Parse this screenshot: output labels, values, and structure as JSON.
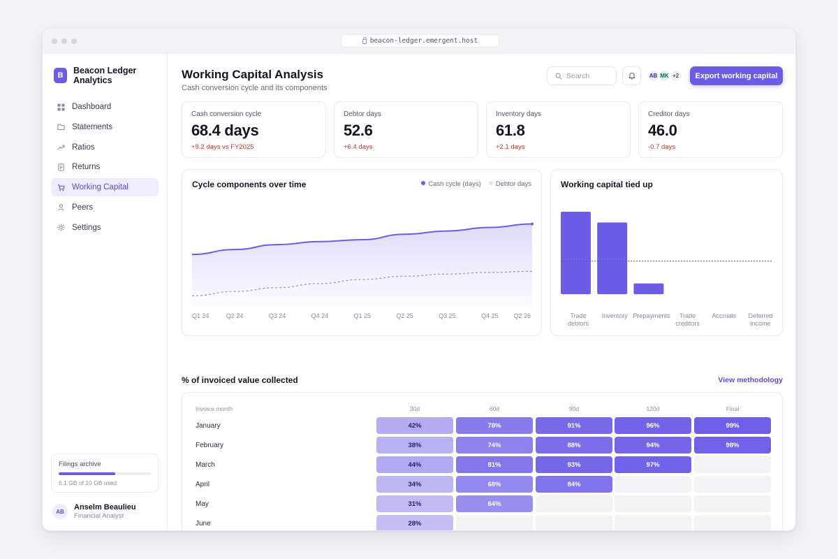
{
  "browser": {
    "url": "beacon-ledger.emergent.host"
  },
  "brand": {
    "logo_letter": "B",
    "name": "Beacon Ledger Analytics"
  },
  "sidebar": {
    "items": [
      {
        "label": "Dashboard",
        "icon": "dashboard-icon"
      },
      {
        "label": "Statements",
        "icon": "folder-icon"
      },
      {
        "label": "Ratios",
        "icon": "trend-icon"
      },
      {
        "label": "Returns",
        "icon": "document-icon"
      },
      {
        "label": "Working Capital",
        "icon": "cart-icon",
        "active": true
      },
      {
        "label": "Peers",
        "icon": "user-icon"
      },
      {
        "label": "Settings",
        "icon": "gear-icon"
      }
    ],
    "storage": {
      "title": "Filings archive",
      "used_text": "6.1 GB of 10 GB used",
      "used_fraction": 0.61
    },
    "user": {
      "initials": "AB",
      "name": "Anselm Beaulieu",
      "role": "Financial Analyst"
    }
  },
  "header": {
    "title": "Working Capital Analysis",
    "subtitle": "Cash conversion cycle and its components",
    "search_placeholder": "Search",
    "avatars": [
      "AB",
      "MK",
      "+2"
    ],
    "export_label": "Export working capital"
  },
  "kpis": [
    {
      "label": "Cash conversion cycle",
      "value": "68.4 days",
      "delta": "+9.2 days vs FY2025",
      "delta_color": "#c0392b"
    },
    {
      "label": "Debtor days",
      "value": "52.6",
      "delta": "+6.4 days",
      "delta_color": "#c0392b"
    },
    {
      "label": "Inventory days",
      "value": "61.8",
      "delta": "+2.1 days",
      "delta_color": "#c0392b"
    },
    {
      "label": "Creditor days",
      "value": "46.0",
      "delta": "-0.7 days",
      "delta_color": "#c0392b"
    }
  ],
  "chart_data": [
    {
      "type": "area",
      "title": "Cycle components over time",
      "categories": [
        "Q1 24",
        "Q2 24",
        "Q3 24",
        "Q4 24",
        "Q1 25",
        "Q2 25",
        "Q3 25",
        "Q4 25",
        "Q2 26"
      ],
      "series": [
        {
          "name": "Cash cycle (days)",
          "color": "#6c5ce7",
          "values": [
            59.2,
            61.0,
            62.8,
            63.9,
            64.6,
            66.6,
            67.8,
            69.1,
            70.4
          ]
        },
        {
          "name": "Debtor days",
          "color": "#9c9aab",
          "dashed": true,
          "values": [
            44.0,
            45.6,
            47.0,
            48.5,
            50.0,
            51.2,
            52.0,
            52.6,
            53.0
          ]
        }
      ],
      "ylim": [
        40,
        80
      ],
      "legend": "top-right"
    },
    {
      "type": "bar",
      "title": "Working capital tied up",
      "categories": [
        "Trade debtors",
        "Inventory",
        "Prepayments",
        "Trade creditors",
        "Accruals",
        "Deferred income"
      ],
      "values": [
        100,
        87,
        13,
        0,
        0,
        0
      ],
      "reference_value": 40,
      "bar_color": "#6c5ce7"
    }
  ],
  "collection": {
    "title": "% of invoiced value collected",
    "link": "View methodology",
    "row_header": "Invoice month",
    "columns": [
      "30d",
      "60d",
      "90d",
      "120d",
      "Final"
    ],
    "rows": [
      {
        "month": "January",
        "values": [
          "42%",
          "78%",
          "91%",
          "96%",
          "99%"
        ]
      },
      {
        "month": "February",
        "values": [
          "38%",
          "74%",
          "88%",
          "94%",
          "98%"
        ]
      },
      {
        "month": "March",
        "values": [
          "44%",
          "81%",
          "93%",
          "97%",
          null
        ]
      },
      {
        "month": "April",
        "values": [
          "34%",
          "68%",
          "84%",
          null,
          null
        ]
      },
      {
        "month": "May",
        "values": [
          "31%",
          "64%",
          null,
          null,
          null
        ]
      },
      {
        "month": "June",
        "values": [
          "28%",
          null,
          null,
          null,
          null
        ]
      }
    ]
  }
}
